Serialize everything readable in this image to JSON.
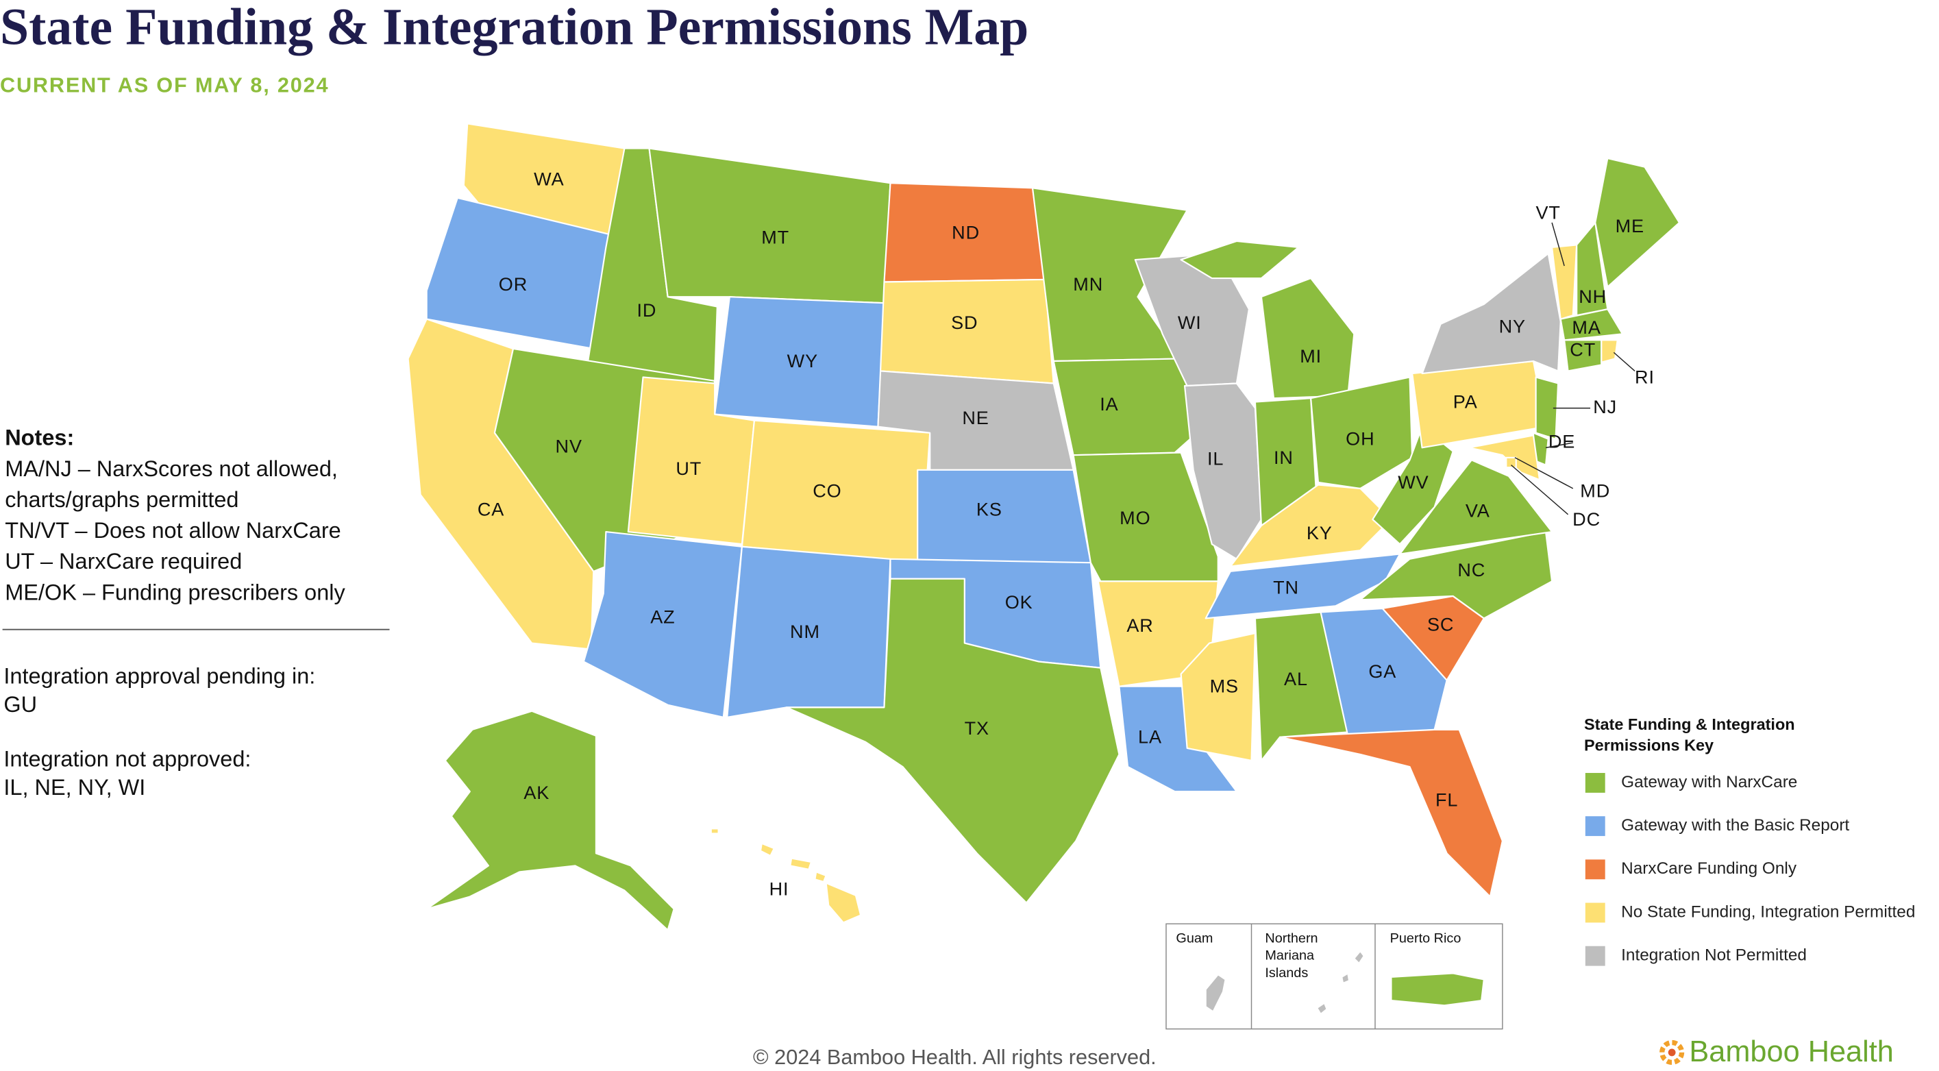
{
  "title": "State Funding & Integration Permissions Map",
  "subtitle": "CURRENT AS OF MAY 8, 2024",
  "notes": {
    "heading": "Notes:",
    "items": [
      "MA/NJ – NarxScores not allowed, charts/graphs permitted",
      "TN/VT – Does not allow NarxCare",
      "UT – NarxCare required",
      "ME/OK – Funding prescribers only"
    ]
  },
  "pending": {
    "label": "Integration approval pending in:",
    "value": "GU"
  },
  "not_approved": {
    "label": "Integration not approved:",
    "value": "IL, NE, NY, WI"
  },
  "legend": {
    "title": "State Funding & Integration Permissions Key",
    "items": [
      {
        "label": "Gateway with NarxCare",
        "color": "#8cbd3f"
      },
      {
        "label": "Gateway with the Basic Report",
        "color": "#78aaea"
      },
      {
        "label": "NarxCare Funding Only",
        "color": "#f07c3e"
      },
      {
        "label": "No State Funding, Integration Permitted",
        "color": "#fde073"
      },
      {
        "label": "Integration Not Permitted",
        "color": "#bebebe"
      }
    ]
  },
  "states": [
    {
      "label": "WA",
      "color": "#fde073"
    },
    {
      "label": "OR",
      "color": "#78aaea"
    },
    {
      "label": "CA",
      "color": "#fde073"
    },
    {
      "label": "ID",
      "color": "#8cbd3f"
    },
    {
      "label": "NV",
      "color": "#8cbd3f"
    },
    {
      "label": "MT",
      "color": "#8cbd3f"
    },
    {
      "label": "WY",
      "color": "#78aaea"
    },
    {
      "label": "UT",
      "color": "#fde073"
    },
    {
      "label": "CO",
      "color": "#fde073"
    },
    {
      "label": "AZ",
      "color": "#78aaea"
    },
    {
      "label": "NM",
      "color": "#78aaea"
    },
    {
      "label": "ND",
      "color": "#f07c3e"
    },
    {
      "label": "SD",
      "color": "#fde073"
    },
    {
      "label": "NE",
      "color": "#bebebe"
    },
    {
      "label": "KS",
      "color": "#78aaea"
    },
    {
      "label": "OK",
      "color": "#78aaea"
    },
    {
      "label": "TX",
      "color": "#8cbd3f"
    },
    {
      "label": "MN",
      "color": "#8cbd3f"
    },
    {
      "label": "IA",
      "color": "#8cbd3f"
    },
    {
      "label": "MO",
      "color": "#8cbd3f"
    },
    {
      "label": "AR",
      "color": "#fde073"
    },
    {
      "label": "LA",
      "color": "#78aaea"
    },
    {
      "label": "WI",
      "color": "#bebebe"
    },
    {
      "label": "IL",
      "color": "#bebebe"
    },
    {
      "label": "MI",
      "color": "#8cbd3f"
    },
    {
      "label": "IN",
      "color": "#8cbd3f"
    },
    {
      "label": "OH",
      "color": "#8cbd3f"
    },
    {
      "label": "KY",
      "color": "#fde073"
    },
    {
      "label": "TN",
      "color": "#78aaea"
    },
    {
      "label": "MS",
      "color": "#fde073"
    },
    {
      "label": "AL",
      "color": "#8cbd3f"
    },
    {
      "label": "GA",
      "color": "#78aaea"
    },
    {
      "label": "FL",
      "color": "#f07c3e"
    },
    {
      "label": "SC",
      "color": "#f07c3e"
    },
    {
      "label": "NC",
      "color": "#8cbd3f"
    },
    {
      "label": "VA",
      "color": "#8cbd3f"
    },
    {
      "label": "WV",
      "color": "#8cbd3f"
    },
    {
      "label": "PA",
      "color": "#fde073"
    },
    {
      "label": "NY",
      "color": "#bebebe"
    },
    {
      "label": "VT",
      "color": "#fde073"
    },
    {
      "label": "NH",
      "color": "#8cbd3f"
    },
    {
      "label": "ME",
      "color": "#8cbd3f"
    },
    {
      "label": "MA",
      "color": "#8cbd3f"
    },
    {
      "label": "CT",
      "color": "#8cbd3f"
    },
    {
      "label": "RI",
      "color": "#fde073"
    },
    {
      "label": "NJ",
      "color": "#8cbd3f"
    },
    {
      "label": "DE",
      "color": "#8cbd3f"
    },
    {
      "label": "MD",
      "color": "#fde073"
    },
    {
      "label": "DC",
      "color": "#fde073"
    },
    {
      "label": "AK",
      "color": "#8cbd3f"
    },
    {
      "label": "HI",
      "color": "#fde073"
    }
  ],
  "insets": [
    {
      "label": "Guam",
      "color": "#bebebe"
    },
    {
      "label": "Northern Mariana Islands",
      "color": "#bebebe"
    },
    {
      "label": "Puerto Rico",
      "color": "#8cbd3f"
    }
  ],
  "footer": "© 2024 Bamboo Health. All rights reserved.",
  "logo": "Bamboo Health"
}
